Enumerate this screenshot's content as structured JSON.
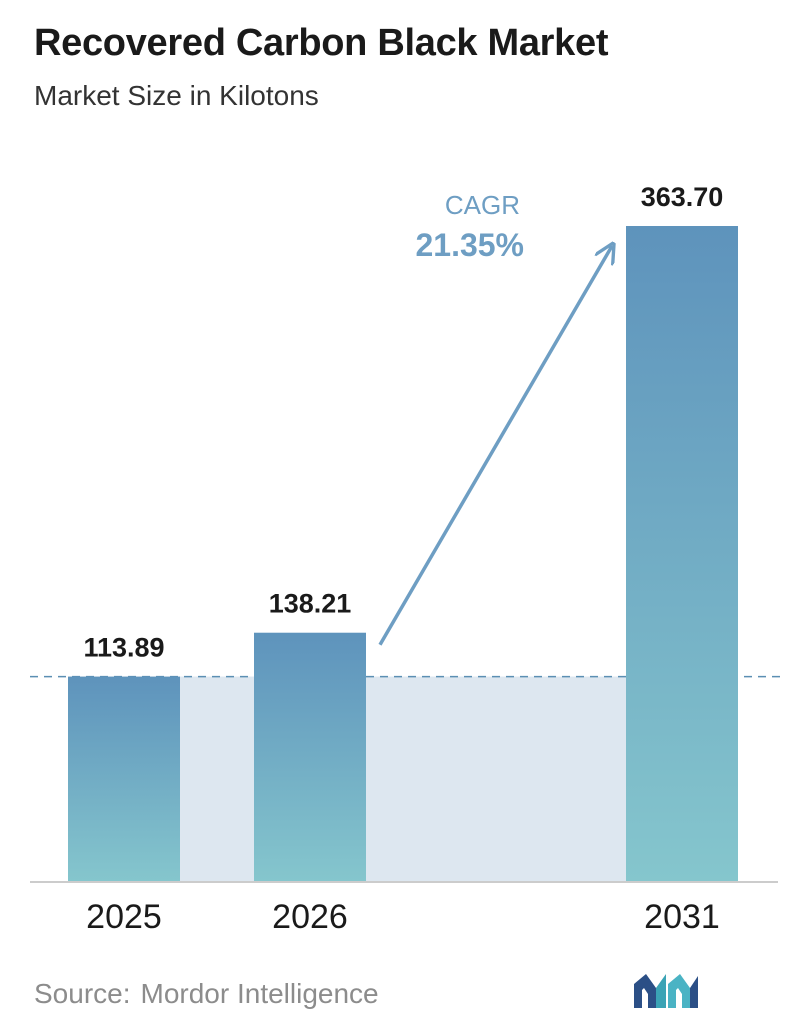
{
  "header": {
    "title": "Recovered Carbon Black Market",
    "subtitle": "Market Size in Kilotons"
  },
  "chart_data": {
    "type": "bar",
    "title": "Recovered Carbon Black Market",
    "subtitle": "Market Size in Kilotons",
    "categories": [
      "2025",
      "2026",
      "2031"
    ],
    "values": [
      113.89,
      138.21,
      363.7
    ],
    "value_labels": [
      "113.89",
      "138.21",
      "363.70"
    ],
    "xlabel": "",
    "ylabel": "",
    "ylim": [
      0,
      363.7
    ],
    "grid": false,
    "legend": "none",
    "reference_line": {
      "value": 113.89,
      "style": "dashed"
    },
    "annotation": {
      "label": "CAGR",
      "value": "21.35%",
      "from": "2026",
      "to": "2031"
    },
    "colors": {
      "bar_top": "#5e93bc",
      "bar_bottom": "#85c6cd",
      "band": "#dde7f0",
      "dashed_line": "#5b8fb3",
      "arrow": "#6e9ec3",
      "axis": "#cccccc"
    }
  },
  "footer": {
    "source_label": "Source:",
    "source_name": "Mordor Intelligence",
    "logo_icon": "mordor-intelligence-logo-icon"
  }
}
